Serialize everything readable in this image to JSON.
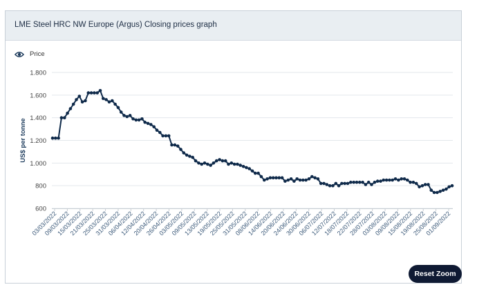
{
  "card": {
    "title": "LME Steel HRC NW Europe (Argus) Closing prices graph"
  },
  "reset_zoom_label": "Reset Zoom",
  "icons": {
    "legend": "eye-icon"
  },
  "colors": {
    "series": "#0f2a4a",
    "grid": "#e3e7eb",
    "header_bg": "#e9eef2",
    "button_bg": "#0f1a33"
  },
  "chart_data": {
    "type": "line",
    "ylabel": "US$ per tonne",
    "xlabel": "",
    "ylim": [
      600,
      1800
    ],
    "yticks": [
      600,
      800,
      1000,
      1200,
      1400,
      1600,
      1800
    ],
    "ytick_labels": [
      "600",
      "800",
      "1.000",
      "1.200",
      "1.400",
      "1.600",
      "1.800"
    ],
    "x_tick_labels": [
      "03/03/2022",
      "09/03/2022",
      "15/03/2022",
      "21/03/2022",
      "25/03/2022",
      "31/03/2022",
      "06/04/2022",
      "12/04/2022",
      "20/04/2022",
      "26/04/2022",
      "03/05/2022",
      "09/05/2022",
      "13/05/2022",
      "19/05/2022",
      "25/05/2022",
      "31/05/2022",
      "08/06/2022",
      "14/06/2022",
      "20/06/2022",
      "24/06/2022",
      "30/06/2022",
      "06/07/2022",
      "12/07/2022",
      "18/07/2022",
      "22/07/2022",
      "28/07/2022",
      "03/08/2022",
      "09/08/2022",
      "15/08/2022",
      "19/08/2022",
      "25/08/2022",
      "01/09/2022"
    ],
    "grid": true,
    "legend_position": "top-left",
    "series": [
      {
        "name": "Price",
        "values": [
          1220,
          1220,
          1220,
          1400,
          1400,
          1440,
          1480,
          1520,
          1560,
          1590,
          1540,
          1550,
          1620,
          1620,
          1620,
          1620,
          1640,
          1570,
          1560,
          1540,
          1550,
          1520,
          1490,
          1450,
          1420,
          1410,
          1420,
          1390,
          1380,
          1380,
          1390,
          1360,
          1350,
          1340,
          1320,
          1290,
          1270,
          1240,
          1240,
          1240,
          1160,
          1160,
          1150,
          1120,
          1090,
          1070,
          1060,
          1050,
          1020,
          1000,
          990,
          1000,
          990,
          980,
          1000,
          1020,
          1030,
          1020,
          1020,
          990,
          1000,
          990,
          990,
          980,
          970,
          960,
          950,
          930,
          910,
          910,
          880,
          850,
          860,
          870,
          870,
          870,
          870,
          870,
          840,
          850,
          860,
          840,
          860,
          850,
          850,
          850,
          860,
          880,
          870,
          860,
          820,
          820,
          810,
          800,
          800,
          820,
          800,
          820,
          820,
          820,
          830,
          830,
          830,
          830,
          830,
          810,
          830,
          810,
          830,
          840,
          840,
          850,
          850,
          850,
          850,
          860,
          850,
          860,
          860,
          850,
          830,
          830,
          820,
          790,
          800,
          810,
          810,
          760,
          740,
          740,
          750,
          760,
          770,
          790,
          800
        ]
      }
    ]
  }
}
